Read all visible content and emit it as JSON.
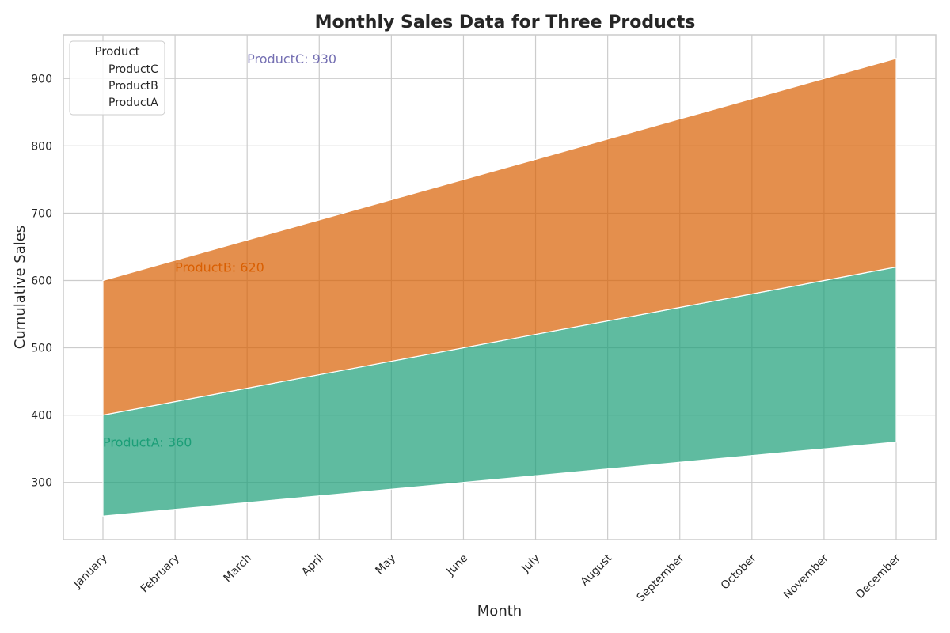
{
  "chart_data": {
    "type": "area",
    "stacked": true,
    "title": "Monthly Sales Data for Three Products",
    "xlabel": "Month",
    "ylabel": "Cumulative Sales",
    "categories": [
      "January",
      "February",
      "March",
      "April",
      "May",
      "June",
      "July",
      "August",
      "September",
      "October",
      "November",
      "December"
    ],
    "ylim": [
      215,
      965
    ],
    "yticks": [
      300,
      400,
      500,
      600,
      700,
      800,
      900
    ],
    "grid": true,
    "legend": {
      "title": "Product",
      "placement": "top-left",
      "entries": [
        "ProductC",
        "ProductB",
        "ProductA"
      ]
    },
    "series": [
      {
        "name": "ProductA",
        "color": "#1b9e77",
        "lower": [
          250,
          260,
          270,
          280,
          290,
          300,
          310,
          320,
          330,
          340,
          350,
          360
        ],
        "upper": [
          400,
          420,
          440,
          460,
          480,
          500,
          520,
          540,
          560,
          580,
          600,
          620
        ]
      },
      {
        "name": "ProductB",
        "color": "#d95f02",
        "lower": [
          400,
          420,
          440,
          460,
          480,
          500,
          520,
          540,
          560,
          580,
          600,
          620
        ],
        "upper": [
          600,
          630,
          660,
          690,
          720,
          750,
          780,
          810,
          840,
          870,
          900,
          930
        ]
      }
    ],
    "annotations": [
      {
        "text": "ProductC: 930",
        "color": "#7570b3",
        "at_category": "March",
        "value": 930
      },
      {
        "text": "ProductB: 620",
        "color": "#d95f02",
        "at_category": "February",
        "value": 620
      },
      {
        "text": "ProductA: 360",
        "color": "#1b9e77",
        "at_category": "January",
        "value": 360
      }
    ]
  }
}
